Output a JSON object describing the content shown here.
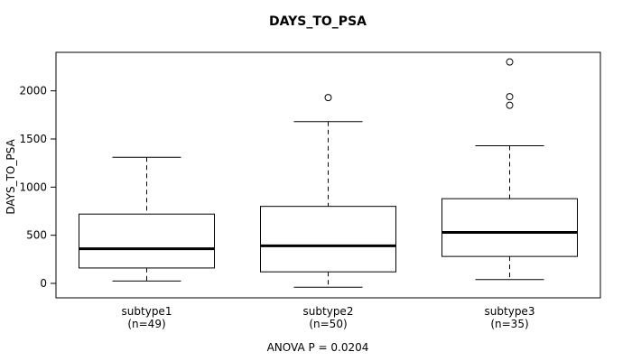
{
  "chart_data": {
    "type": "boxplot",
    "title": "DAYS_TO_PSA",
    "ylabel": "DAYS_TO_PSA",
    "footer": "ANOVA P = 0.0204",
    "ylim": [
      -150,
      2400
    ],
    "yticks": [
      0,
      500,
      1000,
      1500,
      2000
    ],
    "grid": false,
    "groups": [
      {
        "label": "subtype1",
        "sublabel": "(n=49)",
        "lower_whisker": 25,
        "q1": 160,
        "median": 360,
        "q3": 720,
        "upper_whisker": 1310,
        "outliers": []
      },
      {
        "label": "subtype2",
        "sublabel": "(n=50)",
        "lower_whisker": -40,
        "q1": 120,
        "median": 390,
        "q3": 800,
        "upper_whisker": 1680,
        "outliers": [
          1930
        ]
      },
      {
        "label": "subtype3",
        "sublabel": "(n=35)",
        "lower_whisker": 40,
        "q1": 280,
        "median": 530,
        "q3": 880,
        "upper_whisker": 1430,
        "outliers": [
          1850,
          1940,
          2300
        ]
      }
    ],
    "colors": {
      "stroke": "#000000",
      "background": "#ffffff"
    }
  }
}
